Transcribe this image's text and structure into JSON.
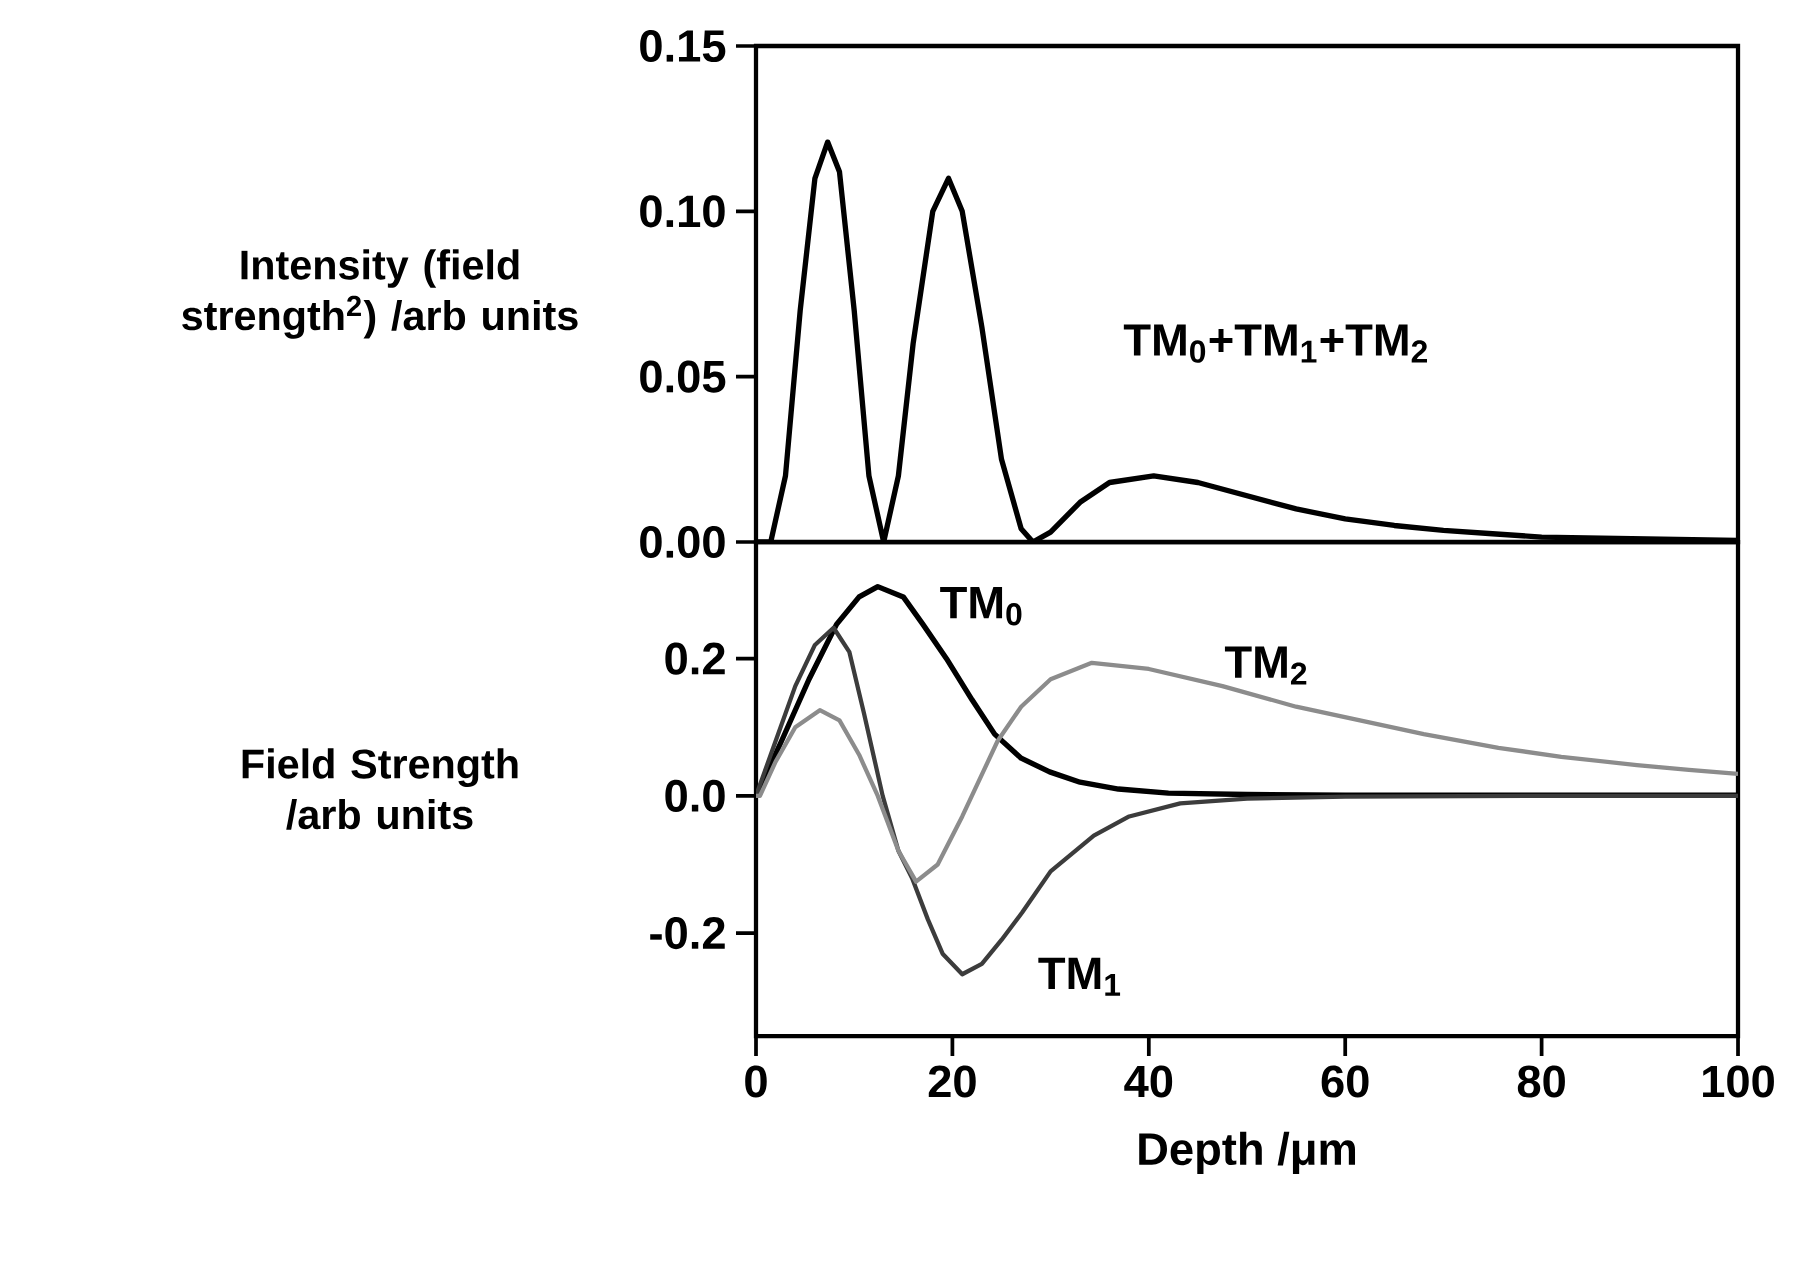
{
  "chart_data": [
    {
      "type": "line",
      "ylabel": "Intensity (field strength$^{2}$) /arb units",
      "xlim": [
        0,
        100
      ],
      "ylim": [
        0,
        0.15
      ],
      "tick_labels": "y",
      "yticks": [
        {
          "value": 0,
          "label": "0.00"
        },
        {
          "value": 0.05,
          "label": "0.05"
        },
        {
          "value": 0.1,
          "label": "0.10"
        },
        {
          "value": 0.15,
          "label": "0.15"
        }
      ],
      "series": [
        {
          "name": "TM$_{0}$+TM$_{1}$+TM$_{2}$",
          "color": "#000000",
          "x": [
            0,
            1.5,
            3,
            4.5,
            6,
            7.3,
            8.5,
            10,
            11.5,
            13,
            14.5,
            16,
            18,
            19.6,
            21,
            23,
            25,
            27,
            28.2,
            30,
            33,
            36,
            40.5,
            45,
            50,
            55,
            60,
            65,
            70,
            75,
            80,
            90,
            100
          ],
          "values": [
            0,
            0,
            0.02,
            0.07,
            0.11,
            0.121,
            0.112,
            0.07,
            0.02,
            0,
            0.02,
            0.06,
            0.1,
            0.11,
            0.1,
            0.065,
            0.025,
            0.004,
            0,
            0.003,
            0.012,
            0.018,
            0.02,
            0.018,
            0.014,
            0.01,
            0.007,
            0.005,
            0.0035,
            0.0025,
            0.0015,
            0.001,
            0.0005
          ]
        }
      ]
    },
    {
      "type": "line",
      "ylabel": "Field Strength /arb units",
      "xlabel": "Depth /μm",
      "xlim": [
        0,
        100
      ],
      "ylim": [
        -0.35,
        0.37
      ],
      "xticks": [
        0,
        20,
        40,
        60,
        80,
        100
      ],
      "yticks": [
        {
          "value": -0.2,
          "label": "-0.2"
        },
        {
          "value": 0,
          "label": "0.0"
        },
        {
          "value": 0.2,
          "label": "0.2"
        }
      ],
      "series": [
        {
          "name": "TM$_{0}$",
          "color": "#000000",
          "x": [
            0,
            1,
            2.6,
            5.4,
            8.2,
            10.5,
            12.4,
            15,
            17,
            19.4,
            22,
            24.3,
            27,
            29.9,
            33,
            36.9,
            42,
            50,
            60,
            80,
            100
          ],
          "values": [
            0,
            0.03,
            0.08,
            0.17,
            0.25,
            0.29,
            0.305,
            0.29,
            0.25,
            0.2,
            0.14,
            0.09,
            0.055,
            0.035,
            0.02,
            0.01,
            0.004,
            0.002,
            0.001,
            0.001,
            0.001
          ]
        },
        {
          "name": "TM$_{1}$",
          "color": "#3c3c3c",
          "x": [
            0,
            2,
            4,
            6,
            7.9,
            9.5,
            11,
            12.9,
            14.5,
            15.9,
            17.5,
            19,
            21,
            23,
            25,
            27.1,
            30,
            34.4,
            38,
            43.2,
            50,
            60,
            80,
            100
          ],
          "values": [
            0,
            0.08,
            0.16,
            0.22,
            0.245,
            0.21,
            0.12,
            0,
            -0.08,
            -0.12,
            -0.18,
            -0.23,
            -0.26,
            -0.245,
            -0.21,
            -0.17,
            -0.11,
            -0.058,
            -0.03,
            -0.011,
            -0.004,
            -0.001,
            0,
            0
          ]
        },
        {
          "name": "TM$_{2}$",
          "color": "#8c8c8c",
          "x": [
            0,
            0.4,
            2,
            4,
            6.5,
            8.5,
            10.5,
            12.4,
            14.5,
            16.3,
            18.5,
            21,
            24.6,
            27,
            30,
            34.2,
            40,
            47.5,
            55,
            61.5,
            68,
            75.6,
            82,
            89.7,
            95,
            100
          ],
          "values": [
            0,
            0,
            0.05,
            0.1,
            0.125,
            0.11,
            0.06,
            0,
            -0.08,
            -0.125,
            -0.1,
            -0.03,
            0.08,
            0.13,
            0.17,
            0.194,
            0.185,
            0.16,
            0.13,
            0.11,
            0.09,
            0.07,
            0.057,
            0.045,
            0.038,
            0.032
          ]
        }
      ]
    }
  ]
}
